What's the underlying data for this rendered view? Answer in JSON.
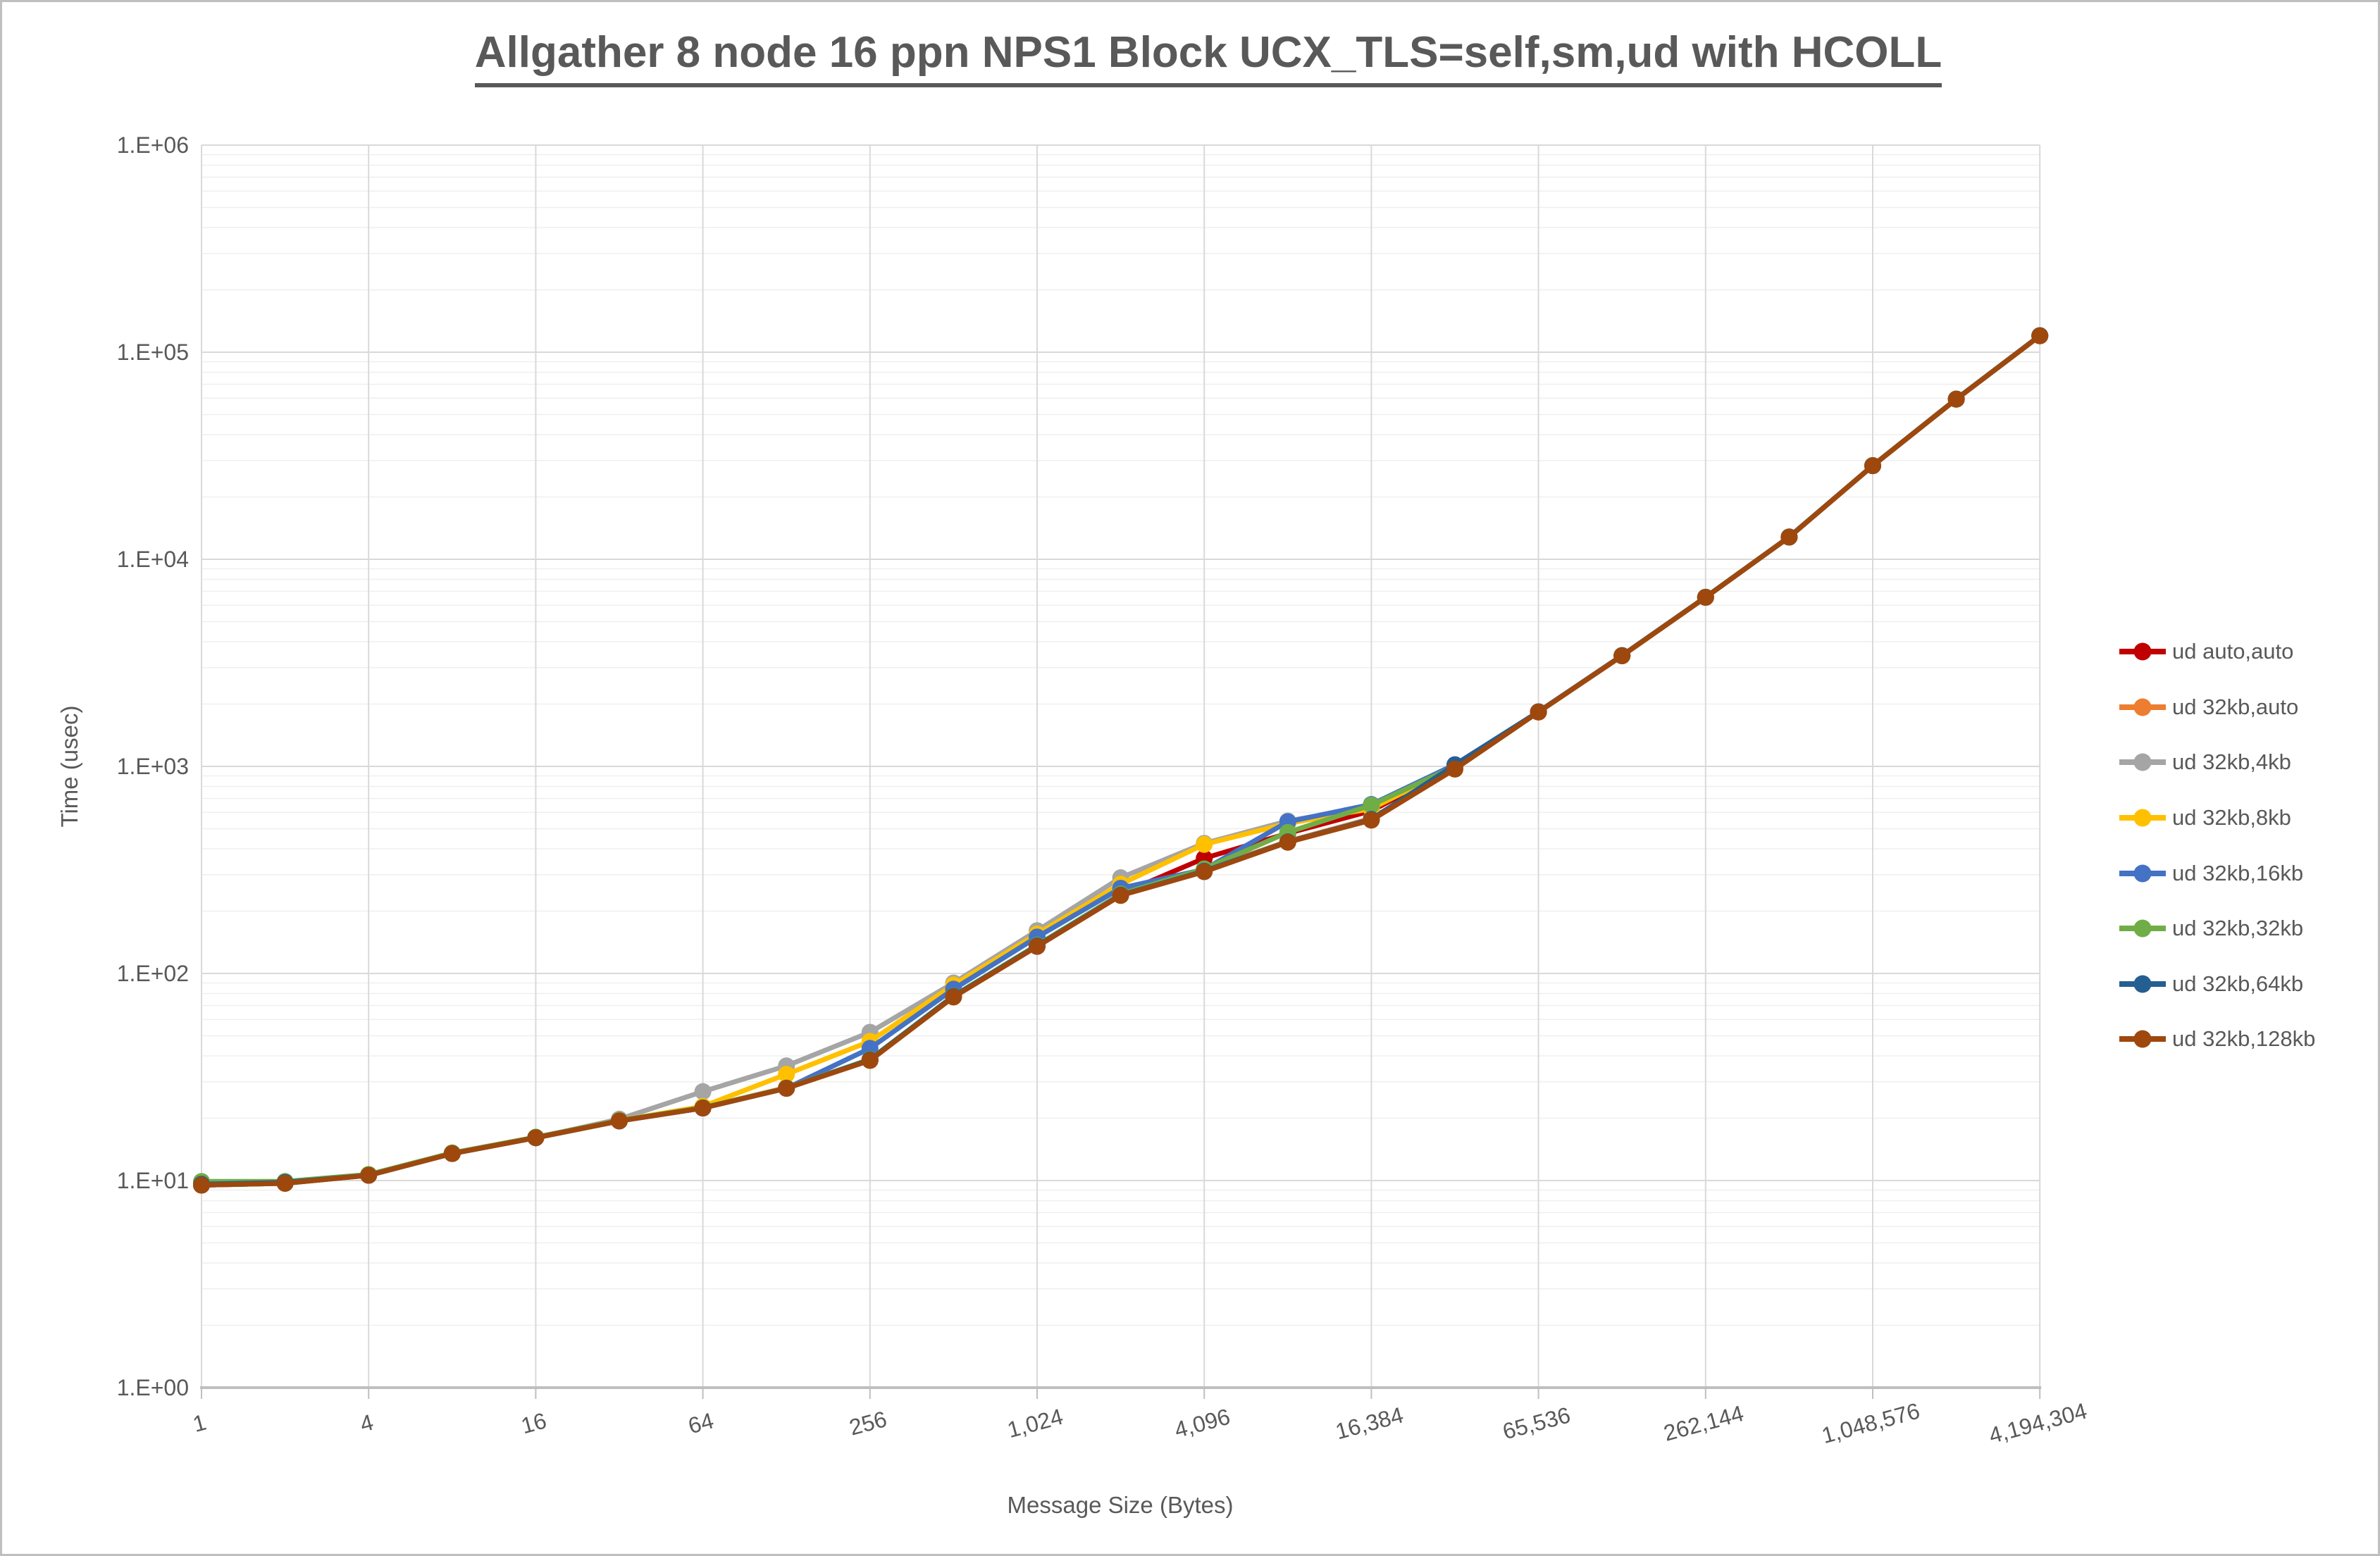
{
  "chart_data": {
    "type": "line",
    "title": "Allgather 8 node 16 ppn NPS1 Block UCX_TLS=self,sm,ud with HCOLL",
    "xlabel": "Message Size (Bytes)",
    "ylabel": "Time (usec)",
    "x_scale": "log2",
    "y_scale": "log10",
    "xlim": [
      1,
      4194304
    ],
    "ylim": [
      1,
      1000000
    ],
    "grid": true,
    "legend_position": "right",
    "x": [
      1,
      2,
      4,
      8,
      16,
      32,
      64,
      128,
      256,
      512,
      1024,
      2048,
      4096,
      8192,
      16384,
      32768,
      65536,
      131072,
      262144,
      524288,
      1048576,
      2097152,
      4194304
    ],
    "x_tick_values": [
      1,
      4,
      16,
      64,
      256,
      1024,
      4096,
      16384,
      65536,
      262144,
      1048576,
      4194304
    ],
    "x_tick_labels": [
      "1",
      "4",
      "16",
      "64",
      "256",
      "1,024",
      "4,096",
      "16,384",
      "65,536",
      "262,144",
      "1,048,576",
      "4,194,304"
    ],
    "y_tick_labels": [
      "1.E+00",
      "1.E+01",
      "1.E+02",
      "1.E+03",
      "1.E+04",
      "1.E+05",
      "1.E+06"
    ],
    "series": [
      {
        "name": "ud auto,auto",
        "color": "#C00000",
        "values": [
          9.5,
          9.7,
          10.6,
          13.5,
          16.1,
          19.4,
          22.4,
          27.9,
          38.2,
          77.5,
          136,
          242,
          360,
          475,
          610,
          995,
          1830,
          3420,
          6550,
          12800,
          28300,
          59300,
          120000
        ]
      },
      {
        "name": "ud 32kb,auto",
        "color": "#ED7D31",
        "values": [
          9.6,
          9.8,
          10.6,
          13.5,
          16.1,
          19.4,
          22.5,
          28.1,
          38.4,
          77.8,
          137,
          240,
          315,
          435,
          560,
          985,
          1832,
          3425,
          6555,
          12810,
          28320,
          59350,
          120100
        ]
      },
      {
        "name": "ud 32kb,4kb",
        "color": "#A5A5A5",
        "values": [
          9.5,
          9.7,
          10.6,
          13.5,
          16.1,
          19.8,
          26.9,
          35.8,
          52.0,
          90.0,
          161,
          290,
          425,
          545,
          640,
          1005,
          1835,
          3430,
          6560,
          12820,
          28340,
          59400,
          120200
        ]
      },
      {
        "name": "ud 32kb,8kb",
        "color": "#FFC000",
        "values": [
          9.5,
          9.7,
          10.6,
          13.5,
          16.1,
          19.5,
          22.8,
          32.6,
          47.0,
          88.0,
          155,
          270,
          420,
          530,
          625,
          1000,
          1832,
          3425,
          6555,
          12810,
          28320,
          59350,
          120100
        ]
      },
      {
        "name": "ud 32kb,16kb",
        "color": "#4472C4",
        "values": [
          9.5,
          9.7,
          10.6,
          13.5,
          16.1,
          19.4,
          22.4,
          27.9,
          43.5,
          84.0,
          150,
          258,
          318,
          540,
          655,
          1020,
          1835,
          3430,
          6560,
          12820,
          28340,
          59400,
          120200
        ]
      },
      {
        "name": "ud 32kb,32kb",
        "color": "#70AD47",
        "values": [
          9.9,
          9.9,
          10.7,
          13.6,
          16.2,
          19.5,
          22.5,
          28.0,
          38.5,
          78.0,
          137,
          242,
          320,
          480,
          650,
          1000,
          1833,
          3425,
          6555,
          12810,
          28330,
          59380,
          120150
        ]
      },
      {
        "name": "ud 32kb,64kb",
        "color": "#255E91",
        "values": [
          9.6,
          9.8,
          10.6,
          13.5,
          16.1,
          19.4,
          22.4,
          27.9,
          38.3,
          77.6,
          136,
          239,
          312,
          432,
          555,
          1015,
          1834,
          3428,
          6558,
          12815,
          28330,
          59370,
          120150
        ]
      },
      {
        "name": "ud 32kb,128kb",
        "color": "#9E480E",
        "values": [
          9.5,
          9.7,
          10.6,
          13.5,
          16.1,
          19.4,
          22.4,
          27.9,
          38.0,
          77.0,
          135,
          238,
          310,
          430,
          550,
          970,
          1830,
          3420,
          6550,
          12800,
          28300,
          59300,
          120000
        ]
      }
    ]
  },
  "styles": {
    "text_color": "#595959",
    "major_grid_color": "#D9D9D9",
    "minor_grid_color": "#EFEFEF",
    "axis_line_color": "#BFBFBF",
    "background": "#FFFFFF",
    "frame_border_color": "#BFBFBF"
  }
}
